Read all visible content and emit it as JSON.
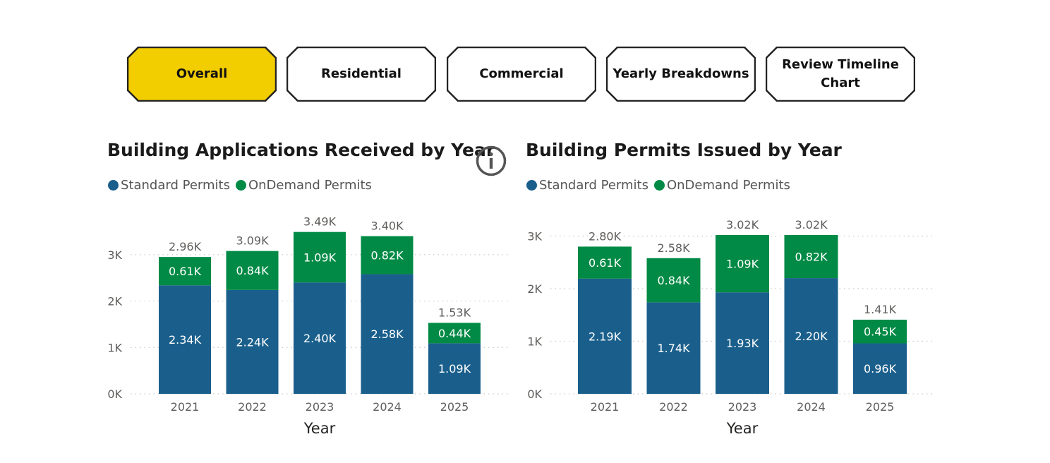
{
  "tabs": [
    {
      "label": "Overall",
      "active": true
    },
    {
      "label": "Residential",
      "active": false
    },
    {
      "label": "Commercial",
      "active": false
    },
    {
      "label": "Yearly Breakdowns",
      "active": false
    },
    {
      "label": "Review Timeline Chart",
      "active": false
    }
  ],
  "colors": {
    "active_tab": "#f2cd00",
    "standard": "#1a5f8c",
    "ondemand": "#008a45"
  },
  "info_icon": "info-icon",
  "chart_data": [
    {
      "type": "bar",
      "stacked": true,
      "title": "Building Applications Received by Year",
      "xlabel": "Year",
      "ylabel": "",
      "categories": [
        "2021",
        "2022",
        "2023",
        "2024",
        "2025"
      ],
      "ylim": [
        0,
        3500
      ],
      "yticks": [
        0,
        1000,
        2000,
        3000
      ],
      "ytick_labels": [
        "0K",
        "1K",
        "2K",
        "3K"
      ],
      "legend": "top-left",
      "series": [
        {
          "name": "Standard Permits",
          "values": [
            2340,
            2240,
            2400,
            2580,
            1090
          ],
          "labels": [
            "2.34K",
            "2.24K",
            "2.40K",
            "2.58K",
            "1.09K"
          ]
        },
        {
          "name": "OnDemand Permits",
          "values": [
            610,
            840,
            1090,
            820,
            440
          ],
          "labels": [
            "0.61K",
            "0.84K",
            "1.09K",
            "0.82K",
            "0.44K"
          ]
        }
      ],
      "totals": [
        "2.96K",
        "3.09K",
        "3.49K",
        "3.40K",
        "1.53K"
      ]
    },
    {
      "type": "bar",
      "stacked": true,
      "title": "Building Permits Issued by Year",
      "xlabel": "Year",
      "ylabel": "",
      "categories": [
        "2021",
        "2022",
        "2023",
        "2024",
        "2025"
      ],
      "ylim": [
        0,
        3020
      ],
      "yticks": [
        0,
        1000,
        2000,
        3000
      ],
      "ytick_labels": [
        "0K",
        "1K",
        "2K",
        "3K"
      ],
      "legend": "top-left",
      "series": [
        {
          "name": "Standard Permits",
          "values": [
            2190,
            1740,
            1930,
            2200,
            960
          ],
          "labels": [
            "2.19K",
            "1.74K",
            "1.93K",
            "2.20K",
            "0.96K"
          ]
        },
        {
          "name": "OnDemand Permits",
          "values": [
            610,
            840,
            1090,
            820,
            450
          ],
          "labels": [
            "0.61K",
            "0.84K",
            "1.09K",
            "0.82K",
            "0.45K"
          ]
        }
      ],
      "totals": [
        "2.80K",
        "2.58K",
        "3.02K",
        "3.02K",
        "1.41K"
      ]
    }
  ]
}
